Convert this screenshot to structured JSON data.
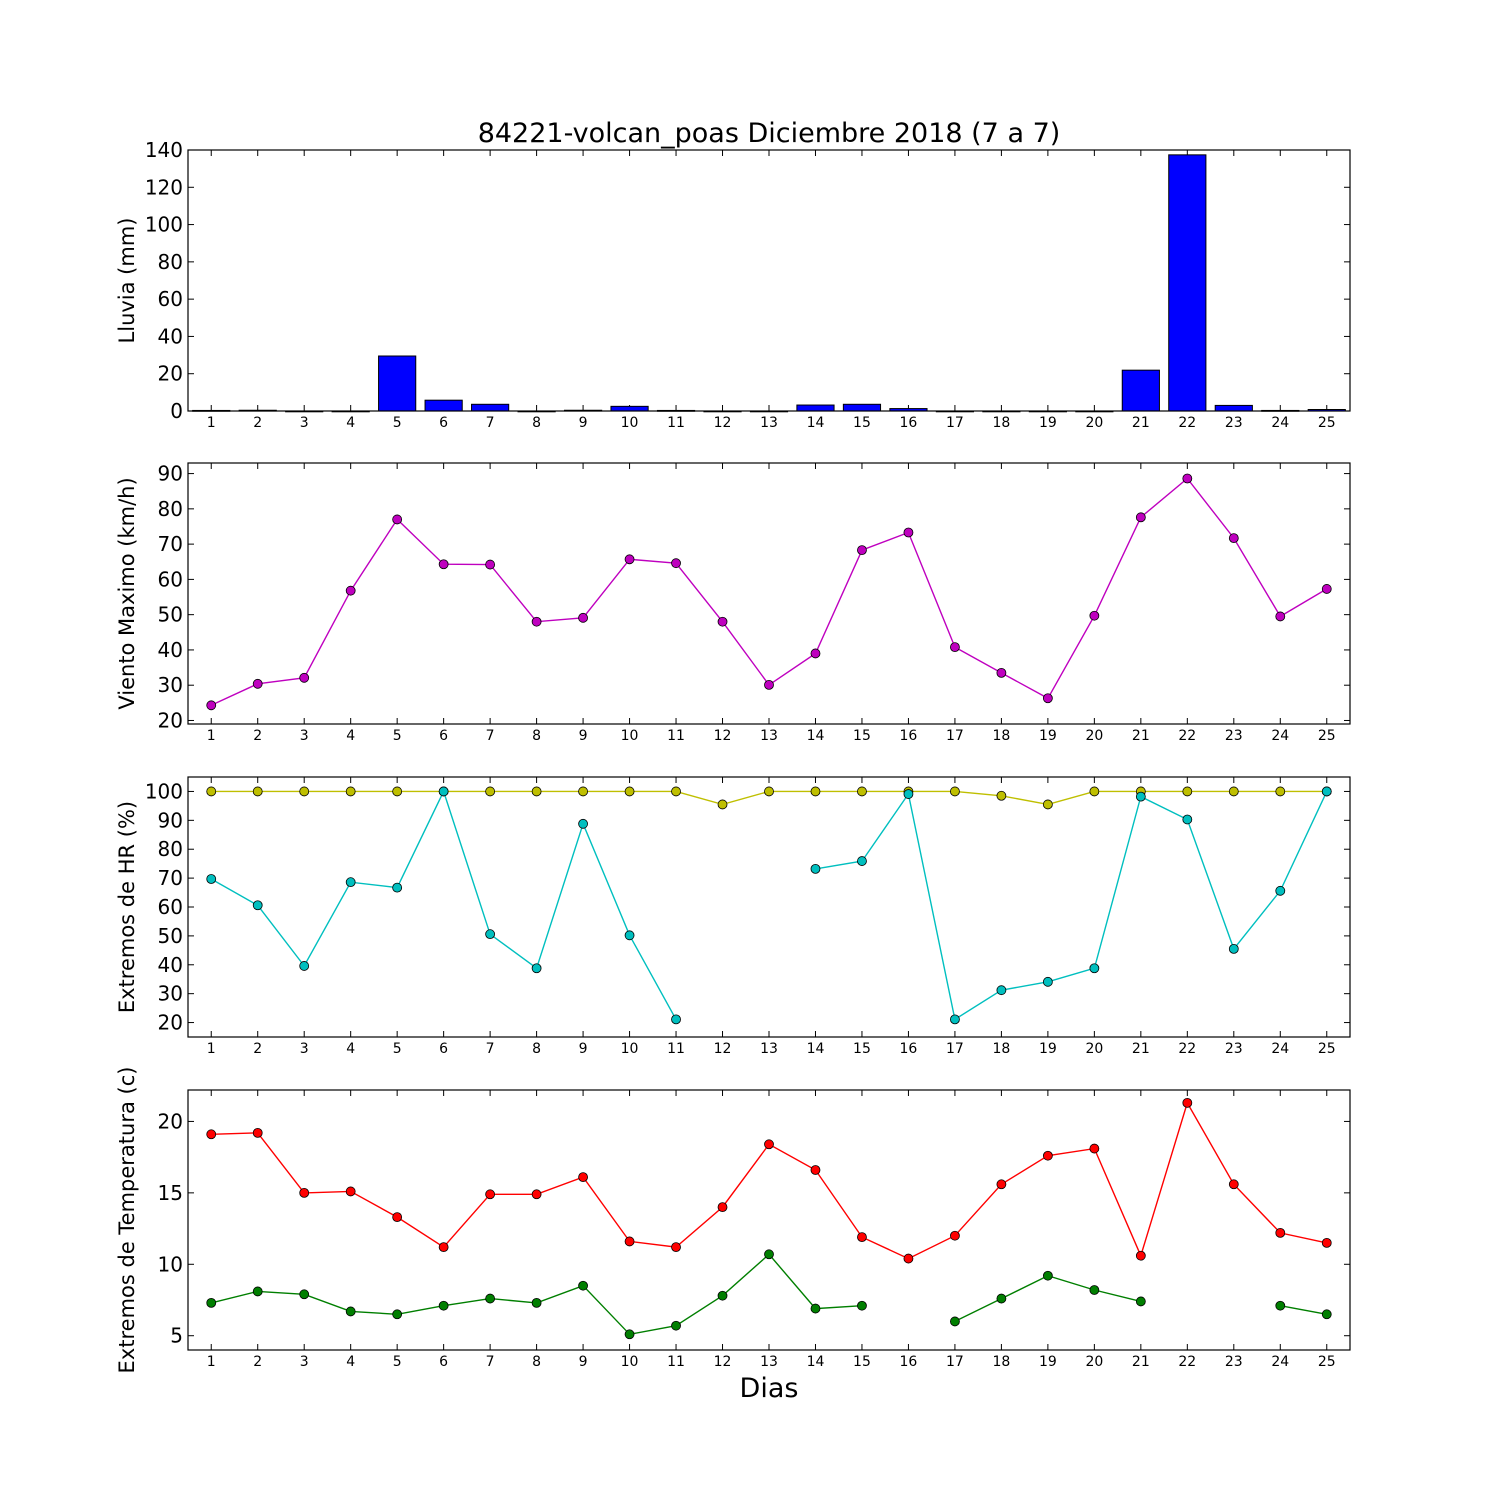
{
  "figure": {
    "title": "84221-volcan_poas Diciembre 2018  (7 a 7)",
    "xlabel": "Dias"
  },
  "chart_data": [
    {
      "type": "bar",
      "ylabel": "Lluvia (mm)",
      "ylim": [
        0,
        140
      ],
      "yticks": [
        0,
        20,
        40,
        60,
        80,
        100,
        120,
        140
      ],
      "categories": [
        1,
        2,
        3,
        4,
        5,
        6,
        7,
        8,
        9,
        10,
        11,
        12,
        13,
        14,
        15,
        16,
        17,
        18,
        19,
        20,
        21,
        22,
        23,
        24,
        25
      ],
      "series": [
        {
          "color": "#0000ff",
          "values": [
            0.3,
            0.4,
            0,
            0,
            29.5,
            5.8,
            3.6,
            0,
            0.4,
            2.5,
            0.3,
            0,
            0,
            3.2,
            3.6,
            1.3,
            0,
            0,
            0,
            0,
            21.9,
            137.4,
            3.0,
            0.3,
            0.8
          ]
        }
      ]
    },
    {
      "type": "line",
      "ylabel": "Viento Maximo (km/h)",
      "ylim": [
        19,
        93
      ],
      "yticks": [
        20,
        30,
        40,
        50,
        60,
        70,
        80,
        90
      ],
      "categories": [
        1,
        2,
        3,
        4,
        5,
        6,
        7,
        8,
        9,
        10,
        11,
        12,
        13,
        14,
        15,
        16,
        17,
        18,
        19,
        20,
        21,
        22,
        23,
        24,
        25
      ],
      "series": [
        {
          "color": "#bf00bf",
          "values": [
            24.3,
            30.4,
            32.1,
            56.8,
            77.0,
            64.3,
            64.2,
            48.0,
            49.1,
            65.7,
            64.6,
            48.0,
            30.1,
            39.0,
            68.3,
            73.3,
            40.8,
            33.5,
            26.3,
            49.7,
            77.6,
            88.6,
            71.7,
            49.5,
            57.3
          ]
        }
      ]
    },
    {
      "type": "line",
      "ylabel": "Extremos de HR (%)",
      "ylim": [
        15,
        105
      ],
      "yticks": [
        20,
        30,
        40,
        50,
        60,
        70,
        80,
        90,
        100
      ],
      "categories": [
        1,
        2,
        3,
        4,
        5,
        6,
        7,
        8,
        9,
        10,
        11,
        12,
        13,
        14,
        15,
        16,
        17,
        18,
        19,
        20,
        21,
        22,
        23,
        24,
        25
      ],
      "series": [
        {
          "color": "#bfbf00",
          "values": [
            100,
            100,
            100,
            100,
            100,
            100,
            100,
            100,
            100,
            100,
            100,
            95.5,
            100,
            100,
            100,
            100,
            100,
            98.5,
            95.5,
            100,
            100,
            100,
            100,
            100,
            100
          ]
        },
        {
          "color": "#00bfbf",
          "values": [
            69.7,
            60.6,
            39.6,
            68.6,
            66.7,
            100,
            50.6,
            38.8,
            88.8,
            50.2,
            21.1,
            null,
            null,
            73.2,
            75.9,
            99.1,
            21.1,
            31.2,
            34.1,
            38.8,
            98.2,
            90.3,
            45.5,
            65.6,
            100
          ]
        }
      ]
    },
    {
      "type": "line",
      "ylabel": "Extremos de Temperatura (c)",
      "ylim": [
        4,
        22.2
      ],
      "yticks": [
        5,
        10,
        15,
        20
      ],
      "categories": [
        1,
        2,
        3,
        4,
        5,
        6,
        7,
        8,
        9,
        10,
        11,
        12,
        13,
        14,
        15,
        16,
        17,
        18,
        19,
        20,
        21,
        22,
        23,
        24,
        25
      ],
      "series": [
        {
          "color": "#ff0000",
          "values": [
            19.1,
            19.2,
            15.0,
            15.1,
            13.3,
            11.2,
            14.9,
            14.9,
            16.1,
            11.6,
            11.2,
            14.0,
            18.4,
            16.6,
            11.9,
            10.4,
            12.0,
            15.6,
            17.6,
            18.1,
            10.6,
            21.3,
            15.6,
            12.2,
            11.5
          ]
        },
        {
          "color": "#007f00",
          "values": [
            7.3,
            8.1,
            7.9,
            6.7,
            6.5,
            7.1,
            7.6,
            7.3,
            8.5,
            5.1,
            5.7,
            7.8,
            10.7,
            6.9,
            7.1,
            null,
            6.0,
            7.6,
            9.2,
            8.2,
            7.4,
            null,
            null,
            7.1,
            6.5
          ]
        }
      ]
    }
  ]
}
